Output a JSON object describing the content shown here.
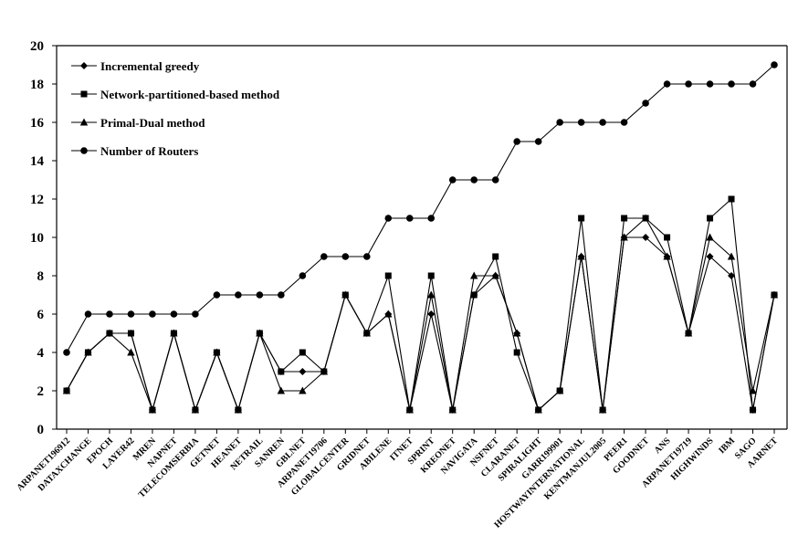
{
  "chart_data": {
    "type": "line",
    "categories": [
      "ARPANET196912",
      "DATAXCHANGE",
      "EPOCH",
      "LAYER42",
      "MREN",
      "NAPNET",
      "TELECOMSERBIA",
      "GETNET",
      "HEANET",
      "NETRAIL",
      "SANREN",
      "GBLNET",
      "ARPANET19706",
      "GLOBALCENTER",
      "GRIDNET",
      "ABILENE",
      "ITNET",
      "SPRINT",
      "KREONET",
      "NAVIGATA",
      "NSFNET",
      "CLARANET",
      "SPIRALIGHT",
      "GARR199901",
      "HOSTWAYINTERNATIONAL",
      "KENTMANJUL2005",
      "PEER1",
      "GOODNET",
      "ANS",
      "ARPANET19719",
      "HIGHWINDS",
      "IBM",
      "SAGO",
      "AARNET"
    ],
    "series": [
      {
        "name": "Incremental greedy",
        "marker": "diamond",
        "values": [
          2,
          4,
          5,
          5,
          1,
          5,
          1,
          4,
          1,
          5,
          3,
          3,
          3,
          7,
          5,
          6,
          1,
          6,
          1,
          7,
          8,
          5,
          1,
          2,
          9,
          1,
          10,
          10,
          9,
          5,
          9,
          8,
          1,
          7
        ]
      },
      {
        "name": "Network-partitioned-based method",
        "marker": "square",
        "values": [
          2,
          4,
          5,
          5,
          1,
          5,
          1,
          4,
          1,
          5,
          3,
          4,
          3,
          7,
          5,
          8,
          1,
          8,
          1,
          7,
          9,
          4,
          1,
          2,
          11,
          1,
          11,
          11,
          10,
          5,
          11,
          12,
          1,
          7
        ]
      },
      {
        "name": "Primal-Dual method",
        "marker": "triangle",
        "values": [
          2,
          4,
          5,
          4,
          1,
          5,
          1,
          4,
          1,
          5,
          2,
          2,
          3,
          7,
          5,
          6,
          1,
          7,
          1,
          8,
          8,
          5,
          1,
          2,
          9,
          1,
          10,
          11,
          9,
          5,
          10,
          9,
          2,
          7
        ]
      },
      {
        "name": "Number of Routers",
        "marker": "circle",
        "values": [
          4,
          6,
          6,
          6,
          6,
          6,
          6,
          7,
          7,
          7,
          7,
          8,
          9,
          9,
          9,
          11,
          11,
          11,
          13,
          13,
          13,
          15,
          15,
          16,
          16,
          16,
          16,
          17,
          18,
          18,
          18,
          18,
          18,
          19
        ]
      }
    ],
    "yticks": [
      0,
      2,
      4,
      6,
      8,
      10,
      12,
      14,
      16,
      18,
      20
    ],
    "ylim": [
      0,
      20
    ],
    "grid": false,
    "legend_position": "top-left"
  }
}
